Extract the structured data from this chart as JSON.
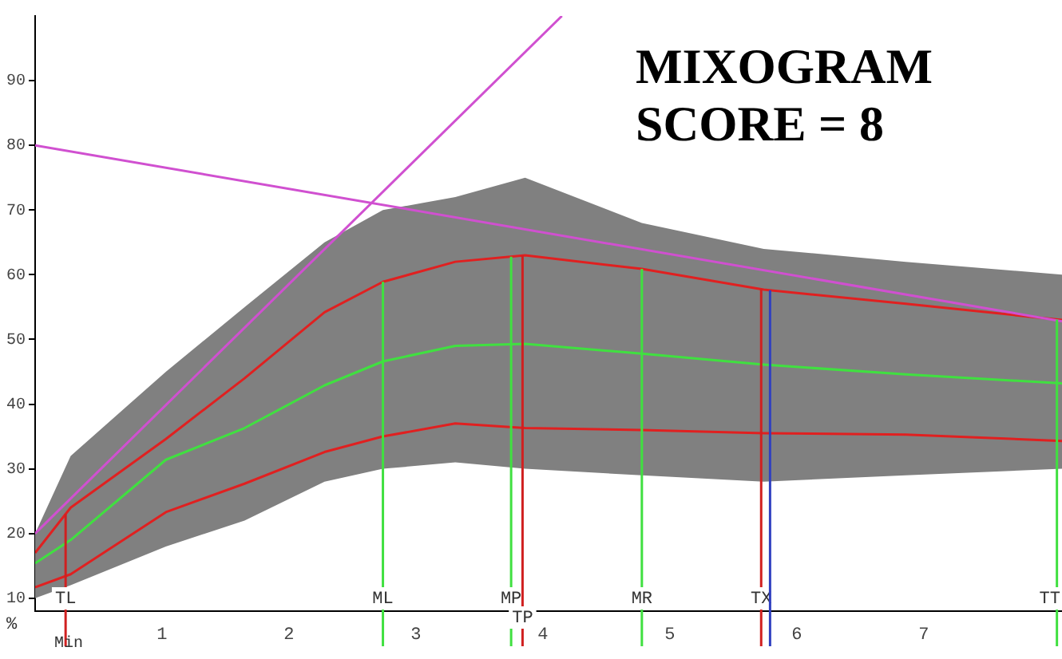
{
  "chart_data": {
    "type": "line",
    "title": "MIXOGRAM SCORE = 8",
    "xlabel": "Min",
    "ylabel": "%",
    "x": [
      0,
      0.28,
      1.03,
      1.65,
      2.28,
      2.74,
      3.31,
      3.86,
      4.78,
      5.74,
      6.86,
      8.09
    ],
    "series": [
      {
        "color": "#808080",
        "values": [
          null,
          null,
          null,
          null,
          null,
          null,
          null,
          null,
          null,
          null,
          null,
          null
        ],
        "lower": [
          10,
          12,
          18,
          22,
          28,
          30,
          31,
          30,
          29,
          28,
          29,
          30
        ],
        "upper": [
          20,
          32,
          45,
          55,
          65,
          70,
          72,
          75,
          68,
          64,
          62,
          60
        ]
      },
      {
        "color": "#e02020",
        "values": [
          17,
          24,
          34.6,
          44,
          54.2,
          58.9,
          62,
          63,
          60.9,
          57.7,
          55.5,
          53
        ]
      },
      {
        "color": "#40e040",
        "values": [
          15.4,
          19,
          31.4,
          36.3,
          42.9,
          46.6,
          49,
          49.3,
          47.8,
          46.1,
          44.6,
          43.2
        ]
      },
      {
        "color": "#e02020",
        "values": [
          11.7,
          13.7,
          23.3,
          27.7,
          32.6,
          35,
          37,
          36.3,
          36,
          35.5,
          35.3,
          34.3
        ]
      },
      {
        "type": "line",
        "x": [
          0,
          4.15
        ],
        "values": [
          20,
          100
        ],
        "color": "#d050d0"
      },
      {
        "type": "line",
        "x": [
          0,
          8.09
        ],
        "values": [
          80,
          52.8
        ],
        "color": "#d050d0"
      }
    ],
    "xlim": [
      0,
      8.09
    ],
    "ylim": [
      8,
      100
    ],
    "xticks": [
      1,
      2,
      3,
      4,
      5,
      6,
      7
    ],
    "yticks": [
      10,
      20,
      30,
      40,
      50,
      60,
      70,
      80,
      90
    ],
    "grid": false,
    "legend": false,
    "marker": "none",
    "ref_lines": [
      {
        "axis": "x",
        "value": 0.24,
        "label": "TL",
        "color": "#d02020"
      },
      {
        "axis": "x",
        "value": 2.74,
        "label": "ML",
        "color": "#40e040"
      },
      {
        "axis": "x",
        "value": 3.75,
        "label": "MP",
        "color": "#40e040"
      },
      {
        "axis": "x",
        "value": 3.84,
        "label": "TP",
        "color": "#d02020"
      },
      {
        "axis": "x",
        "value": 4.78,
        "label": "MR",
        "color": "#40e040"
      },
      {
        "axis": "x",
        "value": 5.72,
        "label": "TX",
        "color": "#d02020"
      },
      {
        "axis": "x",
        "value": 5.79,
        "color": "#3040c0"
      },
      {
        "axis": "x",
        "value": 8.05,
        "label": "TT",
        "color": "#40e040"
      }
    ]
  }
}
